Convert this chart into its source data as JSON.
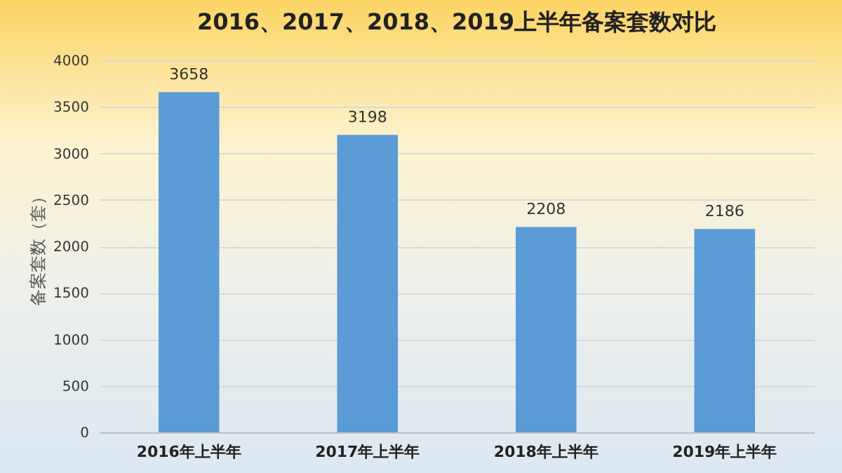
{
  "chart_data": {
    "type": "bar",
    "title": "2016、2017、2018、2019上半年备案套数对比",
    "ylabel": "备案套数（套）",
    "categories": [
      "2016年上半年",
      "2017年上半年",
      "2018年上半年",
      "2019年上半年"
    ],
    "values": [
      3658,
      3198,
      2208,
      2186
    ],
    "color": "#5b9bd5",
    "ylim": [
      0,
      4000
    ],
    "yticks": [
      0,
      500,
      1000,
      1500,
      2000,
      2500,
      3000,
      3500,
      4000
    ],
    "grid": true,
    "data_labels": true
  }
}
